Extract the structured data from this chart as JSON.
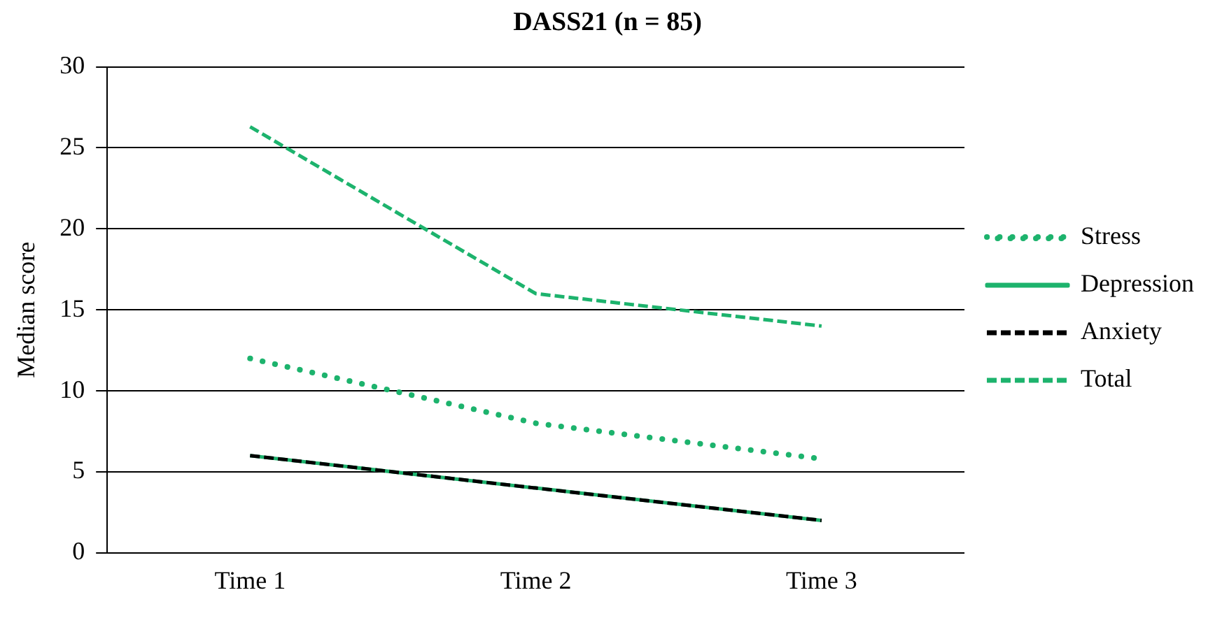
{
  "chart_data": {
    "type": "line",
    "title": "DASS21 (n = 85)",
    "ylabel": "Median score",
    "categories": [
      "Time 1",
      "Time 2",
      "Time 3"
    ],
    "series": [
      {
        "name": "Stress",
        "color": "#1db36d",
        "values": [
          12,
          8,
          5.8
        ],
        "line_style": "dotted"
      },
      {
        "name": "Depression",
        "color": "#1db36d",
        "values": [
          6,
          4,
          2
        ],
        "line_style": "solid"
      },
      {
        "name": "Anxiety",
        "color": "#000000",
        "values": [
          6,
          4,
          2
        ],
        "line_style": "dashed"
      },
      {
        "name": "Total",
        "color": "#1db36d",
        "values": [
          26.3,
          16,
          14
        ],
        "line_style": "dashed"
      }
    ],
    "ylim": [
      0,
      30
    ],
    "yticks": [
      0,
      5,
      10,
      15,
      20,
      25,
      30
    ],
    "grid": "y",
    "legend": "right",
    "marker": "none"
  }
}
